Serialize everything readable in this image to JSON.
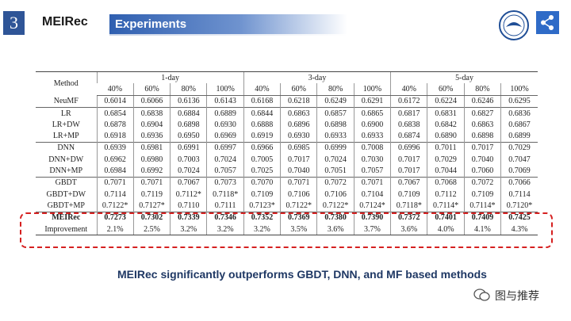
{
  "header": {
    "number": "3",
    "title": "MEIRec",
    "section": "Experiments"
  },
  "table": {
    "method_header": "Method",
    "groups": [
      "1-day",
      "3-day",
      "5-day"
    ],
    "subheaders": [
      "40%",
      "60%",
      "80%",
      "100%",
      "40%",
      "60%",
      "80%",
      "100%",
      "40%",
      "60%",
      "80%",
      "100%"
    ],
    "rows": [
      [
        "NeuMF",
        "0.6014",
        "0.6066",
        "0.6136",
        "0.6143",
        "0.6168",
        "0.6218",
        "0.6249",
        "0.6291",
        "0.6172",
        "0.6224",
        "0.6246",
        "0.6295"
      ],
      [
        "LR",
        "0.6854",
        "0.6838",
        "0.6884",
        "0.6889",
        "0.6844",
        "0.6863",
        "0.6857",
        "0.6865",
        "0.6817",
        "0.6831",
        "0.6827",
        "0.6836"
      ],
      [
        "LR+DW",
        "0.6878",
        "0.6904",
        "0.6898",
        "0.6930",
        "0.6888",
        "0.6896",
        "0.6898",
        "0.6900",
        "0.6838",
        "0.6842",
        "0.6863",
        "0.6867"
      ],
      [
        "LR+MP",
        "0.6918",
        "0.6936",
        "0.6950",
        "0.6969",
        "0.6919",
        "0.6930",
        "0.6933",
        "0.6933",
        "0.6874",
        "0.6890",
        "0.6898",
        "0.6899"
      ],
      [
        "DNN",
        "0.6939",
        "0.6981",
        "0.6991",
        "0.6997",
        "0.6966",
        "0.6985",
        "0.6999",
        "0.7008",
        "0.6996",
        "0.7011",
        "0.7017",
        "0.7029"
      ],
      [
        "DNN+DW",
        "0.6962",
        "0.6980",
        "0.7003",
        "0.7024",
        "0.7005",
        "0.7017",
        "0.7024",
        "0.7030",
        "0.7017",
        "0.7029",
        "0.7040",
        "0.7047"
      ],
      [
        "DNN+MP",
        "0.6984",
        "0.6992",
        "0.7024",
        "0.7057",
        "0.7025",
        "0.7040",
        "0.7051",
        "0.7057",
        "0.7017",
        "0.7044",
        "0.7060",
        "0.7069"
      ],
      [
        "GBDT",
        "0.7071",
        "0.7071",
        "0.7067",
        "0.7073",
        "0.7070",
        "0.7071",
        "0.7072",
        "0.7071",
        "0.7067",
        "0.7068",
        "0.7072",
        "0.7066"
      ],
      [
        "GBDT+DW",
        "0.7114",
        "0.7119",
        "0.7112*",
        "0.7118*",
        "0.7109",
        "0.7106",
        "0.7106",
        "0.7104",
        "0.7109",
        "0.7112",
        "0.7109",
        "0.7114"
      ],
      [
        "GBDT+MP",
        "0.7122*",
        "0.7127*",
        "0.7110",
        "0.7111",
        "0.7123*",
        "0.7122*",
        "0.7122*",
        "0.7124*",
        "0.7118*",
        "0.7114*",
        "0.7114*",
        "0.7120*"
      ],
      [
        "MEIRec",
        "0.7273",
        "0.7302",
        "0.7339",
        "0.7346",
        "0.7352",
        "0.7369",
        "0.7380",
        "0.7390",
        "0.7372",
        "0.7401",
        "0.7409",
        "0.7425"
      ],
      [
        "Improvement",
        "2.1%",
        "2.5%",
        "3.2%",
        "3.2%",
        "3.2%",
        "3.5%",
        "3.6%",
        "3.7%",
        "3.6%",
        "4.0%",
        "4.1%",
        "4.3%"
      ]
    ]
  },
  "caption": "MEIRec significantly outperforms GBDT, DNN, and MF based methods",
  "watermark": "图与推荐"
}
